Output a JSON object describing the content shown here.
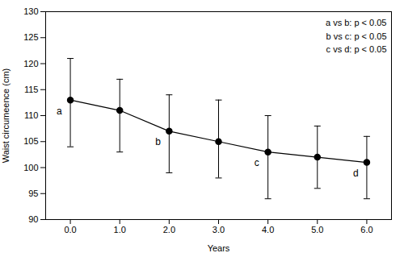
{
  "chart_data": {
    "type": "line",
    "x": [
      0,
      1,
      2,
      3,
      4,
      5,
      6
    ],
    "values": [
      113,
      111,
      107,
      105,
      103,
      102,
      101
    ],
    "ci_low": [
      104,
      103,
      99,
      98,
      94,
      96,
      94
    ],
    "ci_high": [
      121,
      117,
      114,
      113,
      110,
      108,
      106
    ],
    "point_labels": [
      "a",
      null,
      "b",
      null,
      "c",
      null,
      "d"
    ],
    "xlabel": "Years",
    "ylabel": "Waist circumeence (cm)",
    "annotation": "a vs b: p < 0.05\nb vs c: p < 0.05\nc vs d: p < 0.05",
    "xlim": [
      -0.5,
      6.5
    ],
    "xticks": [
      0,
      1,
      2,
      3,
      4,
      5,
      6
    ],
    "ylim": [
      90,
      130
    ],
    "yticks": [
      90,
      95,
      100,
      105,
      110,
      115,
      120,
      125,
      130
    ],
    "color": "black",
    "marker": "circle",
    "grid": false
  }
}
